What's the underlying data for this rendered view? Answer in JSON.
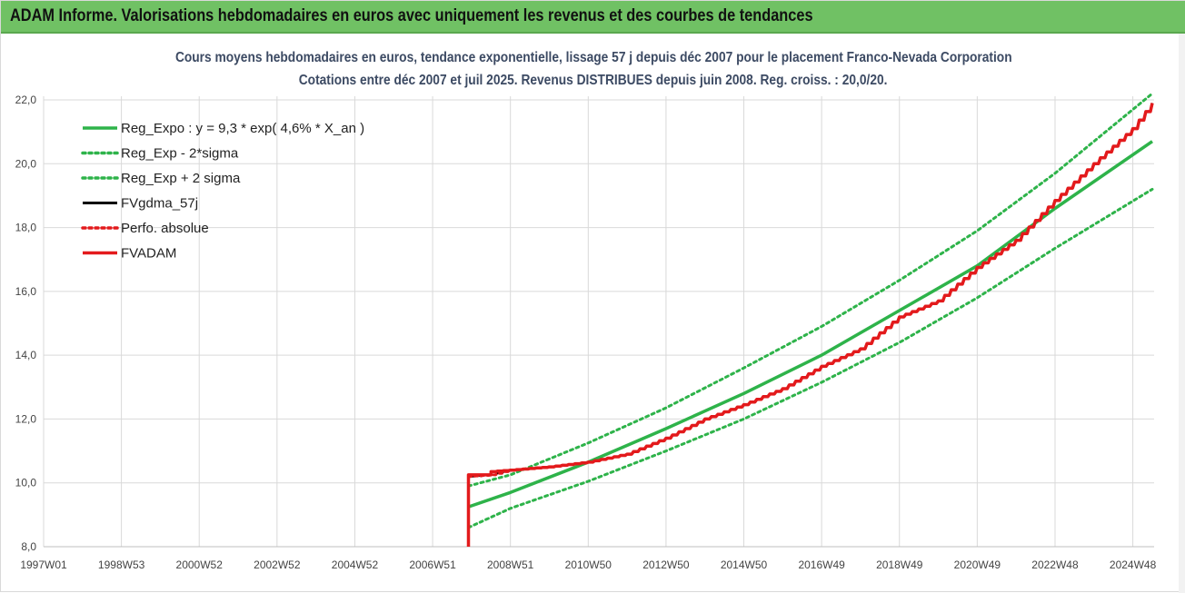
{
  "header": {
    "title": "ADAM Informe. Valorisations hebdomadaires en euros avec uniquement les revenus et des courbes de tendances"
  },
  "chart_data": {
    "type": "line",
    "title": "Cours moyens hebdomadaires en euros, tendance exponentielle, lissage 57 j depuis déc 2007 pour le placement Franco-Nevada Corporation",
    "subtitle": "Cotations entre déc 2007 et juil 2025. Revenus DISTRIBUES depuis juin 2008. Reg. croiss. : 20,0/20.",
    "xlabel": "",
    "ylabel": "",
    "x_range": [
      1997.0,
      2025.5
    ],
    "y_range": [
      8.0,
      22.0
    ],
    "y_ticks": [
      "8,0",
      "10,0",
      "12,0",
      "14,0",
      "16,0",
      "18,0",
      "20,0",
      "22,0"
    ],
    "x_ticks": [
      {
        "label": "1997W01",
        "x": 1997.0
      },
      {
        "label": "1998W53",
        "x": 1999.0
      },
      {
        "label": "2000W52",
        "x": 2001.0
      },
      {
        "label": "2002W52",
        "x": 2003.0
      },
      {
        "label": "2004W52",
        "x": 2005.0
      },
      {
        "label": "2006W51",
        "x": 2007.0
      },
      {
        "label": "2008W51",
        "x": 2009.0
      },
      {
        "label": "2010W50",
        "x": 2011.0
      },
      {
        "label": "2012W50",
        "x": 2013.0
      },
      {
        "label": "2014W50",
        "x": 2015.0
      },
      {
        "label": "2016W49",
        "x": 2017.0
      },
      {
        "label": "2018W49",
        "x": 2019.0
      },
      {
        "label": "2020W49",
        "x": 2021.0
      },
      {
        "label": "2022W48",
        "x": 2023.0
      },
      {
        "label": "2024W48",
        "x": 2025.0
      }
    ],
    "grid": true,
    "legend_position": "top-left",
    "series": [
      {
        "name": "Reg_Expo : y = 9,3 * exp( 4,6% *  X_an )",
        "color": "#2eb34a",
        "style": "solid",
        "points": [
          [
            2007.92,
            9.25
          ],
          [
            2009,
            9.7
          ],
          [
            2011,
            10.65
          ],
          [
            2013,
            11.7
          ],
          [
            2015,
            12.8
          ],
          [
            2017,
            14.0
          ],
          [
            2019,
            15.4
          ],
          [
            2021,
            16.8
          ],
          [
            2023,
            18.6
          ],
          [
            2025.5,
            20.7
          ]
        ]
      },
      {
        "name": "Reg_Exp - 2*sigma",
        "color": "#2eb34a",
        "style": "dotted",
        "points": [
          [
            2007.92,
            8.6
          ],
          [
            2009,
            9.2
          ],
          [
            2011,
            10.05
          ],
          [
            2013,
            11.0
          ],
          [
            2015,
            12.0
          ],
          [
            2017,
            13.15
          ],
          [
            2019,
            14.4
          ],
          [
            2021,
            15.8
          ],
          [
            2023,
            17.35
          ],
          [
            2025.5,
            19.2
          ]
        ]
      },
      {
        "name": "Reg_Exp + 2 sigma",
        "color": "#2eb34a",
        "style": "dotted",
        "points": [
          [
            2007.92,
            9.9
          ],
          [
            2009,
            10.25
          ],
          [
            2011,
            11.25
          ],
          [
            2013,
            12.35
          ],
          [
            2015,
            13.6
          ],
          [
            2017,
            14.9
          ],
          [
            2019,
            16.35
          ],
          [
            2021,
            17.9
          ],
          [
            2023,
            19.7
          ],
          [
            2025.5,
            22.2
          ]
        ]
      },
      {
        "name": "FVgdma_57j",
        "color": "#000000",
        "style": "solid",
        "points": [
          [
            2007.92,
            10.2
          ],
          [
            2008.5,
            10.25
          ],
          [
            2009,
            10.4
          ],
          [
            2010,
            10.5
          ],
          [
            2011,
            10.65
          ],
          [
            2012,
            10.9
          ],
          [
            2013,
            11.4
          ],
          [
            2014,
            12.0
          ],
          [
            2015,
            12.45
          ],
          [
            2016,
            12.95
          ],
          [
            2017,
            13.65
          ],
          [
            2018,
            14.2
          ],
          [
            2019,
            15.2
          ],
          [
            2020,
            15.7
          ],
          [
            2021,
            16.75
          ],
          [
            2022,
            17.6
          ],
          [
            2023,
            18.85
          ],
          [
            2024,
            20.0
          ],
          [
            2025,
            21.1
          ],
          [
            2025.5,
            21.9
          ]
        ]
      },
      {
        "name": "Perfo. absolue",
        "color": "#e31a1c",
        "style": "dotted",
        "points": [
          [
            2007.92,
            10.2
          ],
          [
            2008.5,
            10.25
          ],
          [
            2009,
            10.4
          ],
          [
            2010,
            10.5
          ],
          [
            2011,
            10.65
          ],
          [
            2012,
            10.9
          ],
          [
            2013,
            11.4
          ],
          [
            2014,
            12.0
          ],
          [
            2015,
            12.45
          ],
          [
            2016,
            12.95
          ],
          [
            2017,
            13.65
          ],
          [
            2018,
            14.2
          ],
          [
            2019,
            15.2
          ],
          [
            2020,
            15.7
          ],
          [
            2021,
            16.75
          ],
          [
            2022,
            17.6
          ],
          [
            2023,
            18.85
          ],
          [
            2024,
            20.0
          ],
          [
            2025,
            21.1
          ],
          [
            2025.5,
            21.9
          ]
        ]
      },
      {
        "name": "FVADAM",
        "color": "#e31a1c",
        "style": "solid",
        "points": [
          [
            2007.92,
            8.0
          ],
          [
            2007.92,
            10.25
          ],
          [
            2008.5,
            10.25
          ],
          [
            2008.5,
            10.35
          ],
          [
            2009,
            10.4
          ],
          [
            2010,
            10.5
          ],
          [
            2011,
            10.65
          ],
          [
            2012,
            10.9
          ],
          [
            2013,
            11.4
          ],
          [
            2014,
            12.0
          ],
          [
            2015,
            12.45
          ],
          [
            2016,
            12.95
          ],
          [
            2017,
            13.65
          ],
          [
            2018,
            14.2
          ],
          [
            2019,
            15.2
          ],
          [
            2020,
            15.7
          ],
          [
            2021,
            16.75
          ],
          [
            2022,
            17.6
          ],
          [
            2023,
            18.85
          ],
          [
            2024,
            20.0
          ],
          [
            2025,
            21.1
          ],
          [
            2025.5,
            21.9
          ]
        ]
      }
    ]
  }
}
